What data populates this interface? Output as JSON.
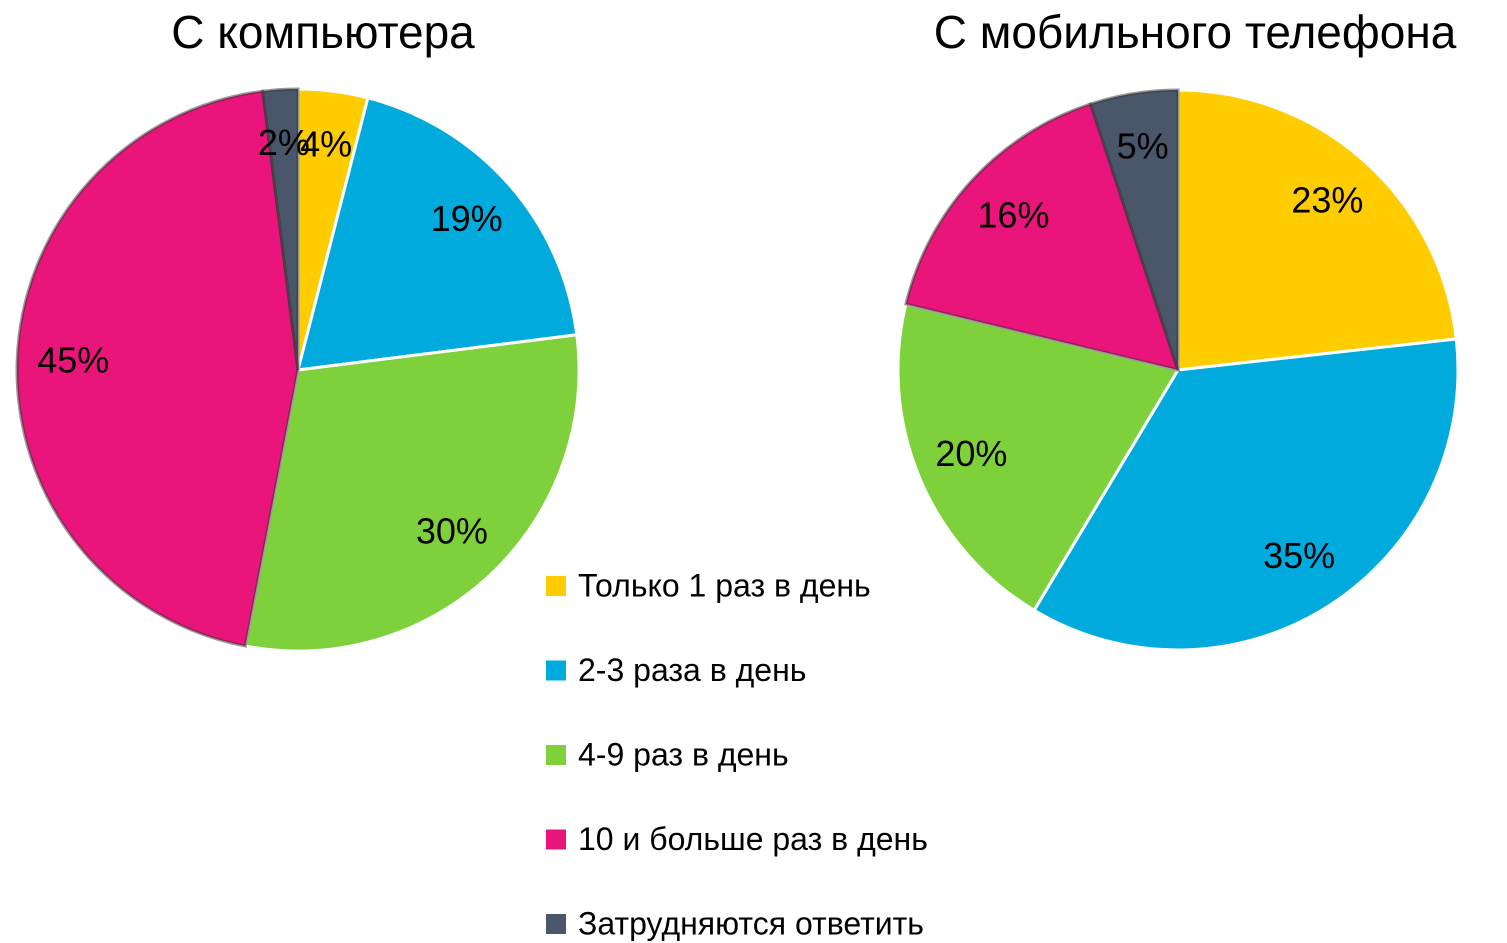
{
  "chart_data": [
    {
      "type": "pie",
      "title": "С компьютера",
      "values": [
        4,
        19,
        30,
        45,
        2
      ],
      "value_labels": [
        "4%",
        "19%",
        "30%",
        "45%",
        "2%"
      ]
    },
    {
      "type": "pie",
      "title": "С мобильного телефона",
      "values": [
        23,
        35,
        20,
        16,
        5
      ],
      "value_labels": [
        "23%",
        "35%",
        "20%",
        "16%",
        "5%"
      ]
    }
  ],
  "legend": {
    "categories": [
      "Только 1 раз в день",
      "2-3 раза в день",
      "4-9 раз в день",
      "10 и больше раз в день",
      "Затрудняются ответить"
    ],
    "colors": [
      "#ffcc00",
      "#00aadd",
      "#7fd13b",
      "#ea157a",
      "#4a5669"
    ]
  }
}
